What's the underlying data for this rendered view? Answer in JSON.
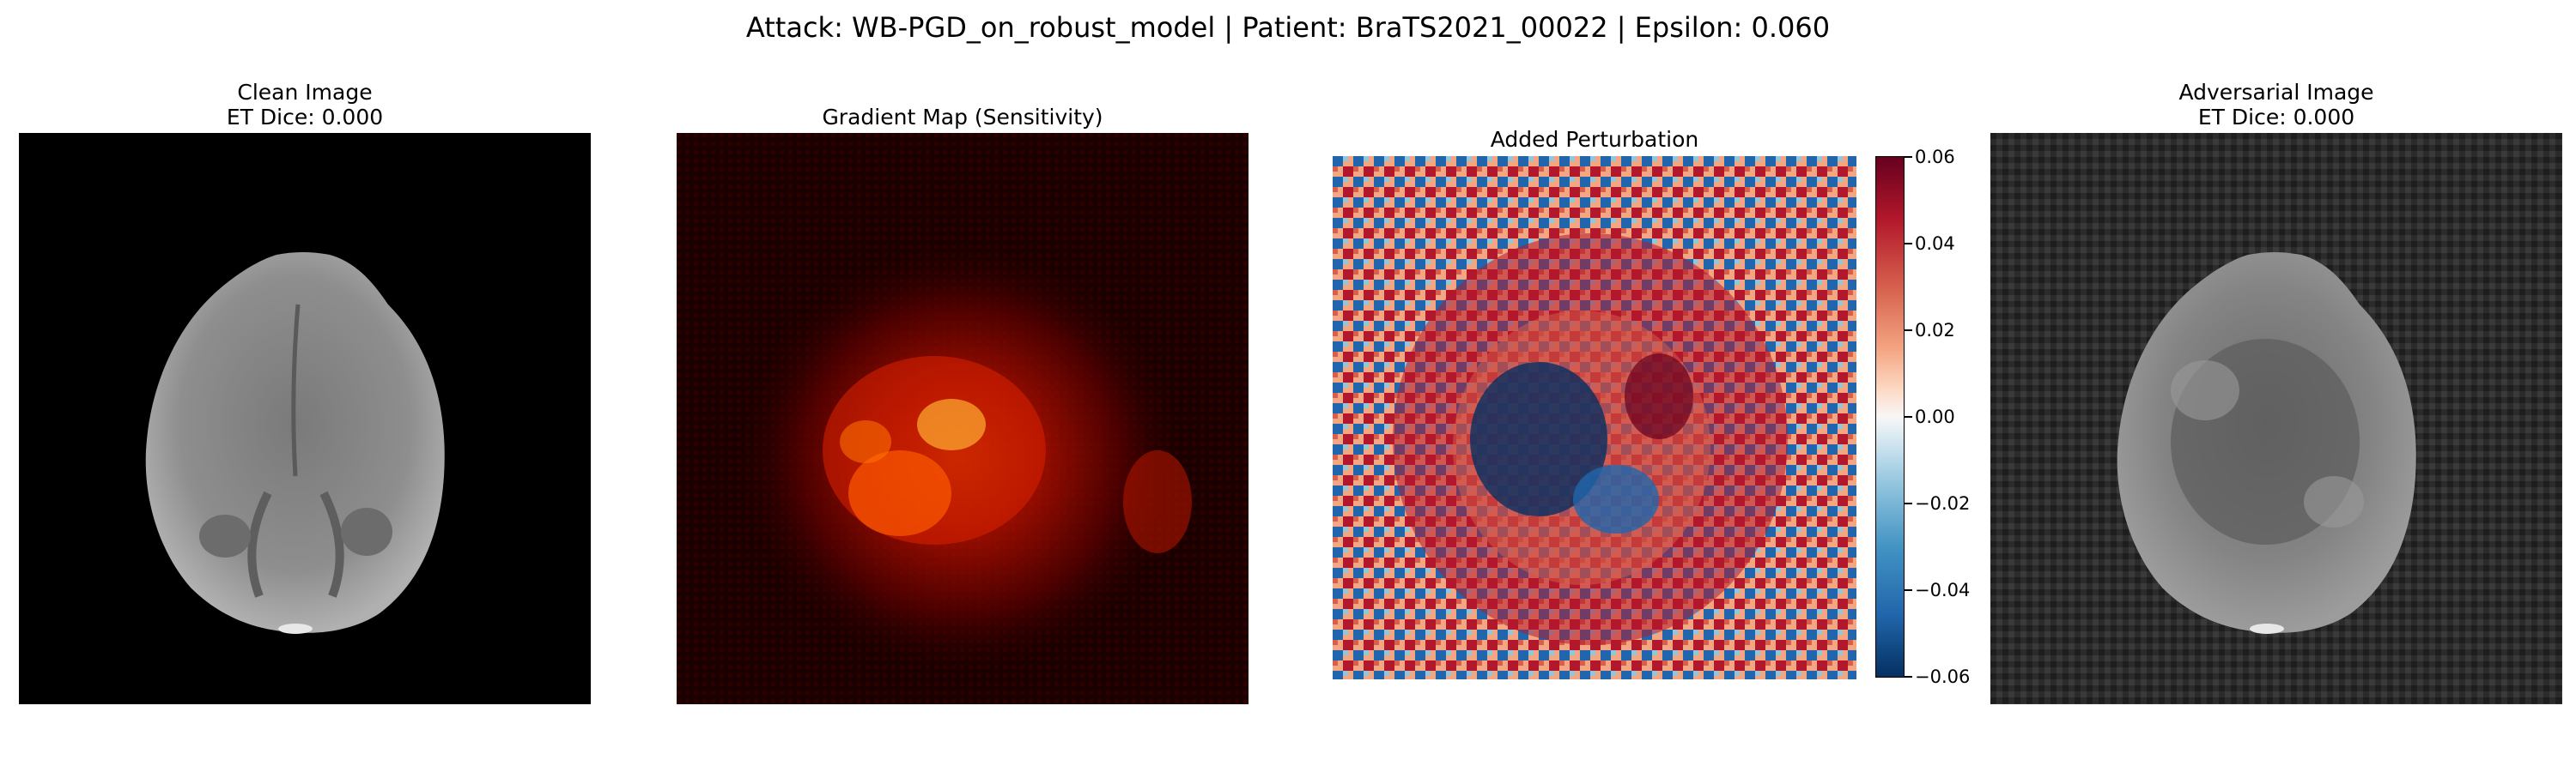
{
  "suptitle": "Attack: WB-PGD_on_robust_model | Patient: BraTS2021_00022 | Epsilon: 0.060",
  "panels": [
    {
      "title": "Clean Image\nET Dice: 0.000",
      "colormap": "gray"
    },
    {
      "title": "Gradient Map (Sensitivity)",
      "colormap": "hot"
    },
    {
      "title": "Added Perturbation",
      "colormap": "RdBu_r"
    },
    {
      "title": "Adversarial Image\nET Dice: 0.000",
      "colormap": "gray"
    }
  ],
  "colorbar": {
    "ticks": [
      "0.06",
      "0.04",
      "0.02",
      "0.00",
      "−0.02",
      "−0.04",
      "−0.06"
    ],
    "range": [
      -0.06,
      0.06
    ]
  },
  "colors": {
    "background_dark": "#000000",
    "brain_gray": "#8a8a8a",
    "adv_background": "#2a2a2a",
    "hot_red": "#e02000",
    "perturb_red": "#b2182b",
    "perturb_blue": "#2166ac"
  }
}
